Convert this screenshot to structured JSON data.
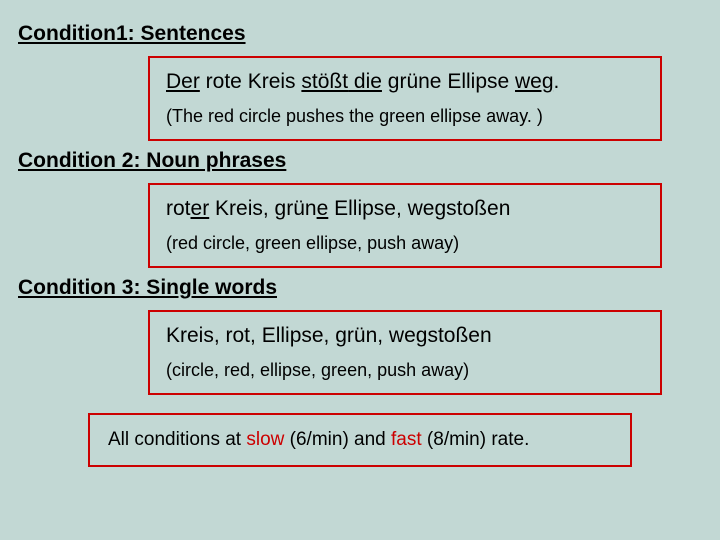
{
  "colors": {
    "background": "#c2d8d4",
    "text": "#000000",
    "box_border": "#cc0000",
    "accent_slow": "#cc0000",
    "accent_fast": "#cc0000"
  },
  "condition1": {
    "heading": "Condition1: Sentences",
    "sentence_parts": {
      "der": "Der",
      "rote_kreis": " rote Kreis ",
      "stoesst": "stößt",
      "die": " die",
      "gruene_ellipse_weg": " grüne Ellipse ",
      "weg": "weg",
      "period": "."
    },
    "translation": "(The red circle pushes the green ellipse away. )"
  },
  "condition2": {
    "heading": "Condition 2: Noun phrases",
    "sentence_parts": {
      "rot": "rot",
      "er": "er",
      "kreis": " Kreis,  grün",
      "e": "e",
      "rest": " Ellipse, wegstoßen"
    },
    "translation": "(red circle, green ellipse, push away)"
  },
  "condition3": {
    "heading": "Condition 3: Single words",
    "primary": "Kreis,  rot, Ellipse, grün,  wegstoßen",
    "translation": "(circle, red, ellipse, green, push away)"
  },
  "footer": {
    "pre": "All conditions at ",
    "slow": "slow",
    "slow_rate": " (6/min) and ",
    "fast": "fast",
    "fast_rate": " (8/min) rate."
  }
}
